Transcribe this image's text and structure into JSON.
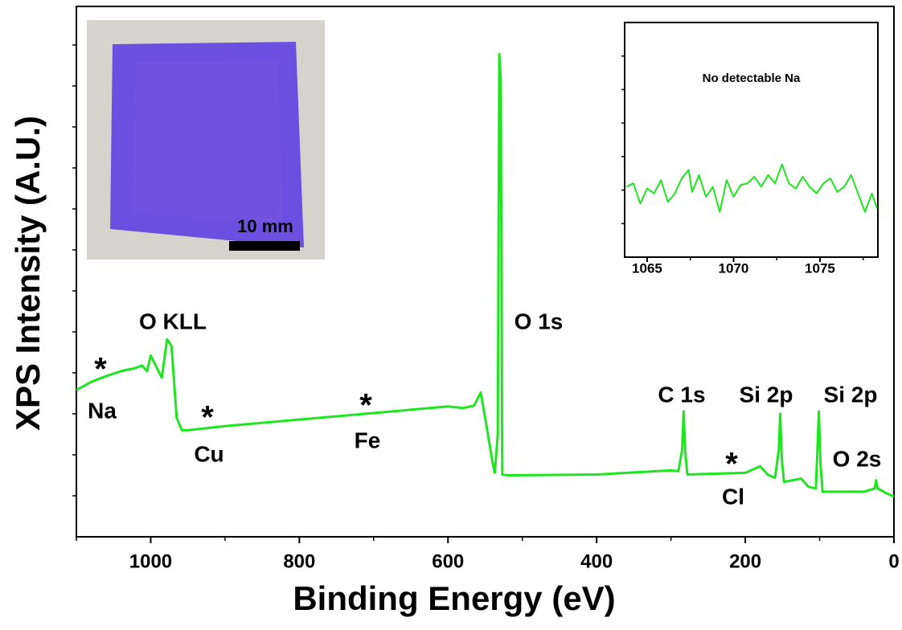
{
  "chart_data": [
    {
      "type": "line",
      "xlabel": "Binding Energy (eV)",
      "ylabel": "XPS Intensity (A.U.)",
      "xlim": [
        1100,
        0
      ],
      "xticks": [
        1000,
        800,
        600,
        400,
        200,
        0
      ],
      "xminorticks": [
        1100,
        900,
        700,
        500,
        300,
        100
      ],
      "ylim": [
        0,
        6.47
      ],
      "yticks": [
        0.5,
        1,
        1.5,
        2,
        2.5,
        3,
        3.5,
        4,
        4.5,
        5,
        5.5,
        6
      ],
      "color": "#1ee61e",
      "x": [
        1100,
        1080,
        1060,
        1040,
        1020,
        1012,
        1005,
        1000,
        995,
        985,
        978,
        972,
        965,
        958,
        950,
        900,
        800,
        700,
        600,
        580,
        565,
        556,
        550,
        540,
        537,
        533,
        531,
        529,
        527,
        520,
        400,
        300,
        290,
        285,
        283,
        281,
        278,
        200,
        180,
        170,
        160,
        155,
        153,
        151,
        148,
        125,
        115,
        105,
        103,
        101,
        99,
        96,
        60,
        40,
        26,
        24,
        22,
        10,
        0
      ],
      "values": [
        1.79,
        1.89,
        1.96,
        2.02,
        2.06,
        2.09,
        2.02,
        2.21,
        2.12,
        1.94,
        2.41,
        2.33,
        1.45,
        1.3,
        1.3,
        1.35,
        1.43,
        1.51,
        1.59,
        1.57,
        1.6,
        1.76,
        1.45,
        0.91,
        0.78,
        1.25,
        5.89,
        5.57,
        0.76,
        0.75,
        0.76,
        0.81,
        0.8,
        1.06,
        1.53,
        1.06,
        0.76,
        0.78,
        0.86,
        0.76,
        0.72,
        1.06,
        1.5,
        0.96,
        0.67,
        0.71,
        0.61,
        0.59,
        1.06,
        1.53,
        0.91,
        0.55,
        0.55,
        0.55,
        0.59,
        0.69,
        0.59,
        0.53,
        0.49
      ],
      "annotations": [
        "O KLL",
        "O 1s",
        "C 1s",
        "Si 2p",
        "Si 2p",
        "O 2s",
        "Na",
        "Cu",
        "Fe",
        "Cl",
        "*",
        "*",
        "*",
        "*"
      ],
      "photo_label": "10 mm"
    },
    {
      "type": "line",
      "title": "No detectable Na",
      "xlim": [
        1063.7,
        1078.35
      ],
      "xticks": [
        1065,
        1070,
        1075
      ],
      "xminorticks": [
        1067.5,
        1072.5,
        1077.5
      ],
      "ylim": [
        -2,
        5
      ],
      "yticks": [
        -1,
        0,
        1,
        2,
        3,
        4
      ],
      "color": "#1ee61e",
      "x": [
        1063.8,
        1064.2,
        1064.6,
        1065.0,
        1065.4,
        1065.8,
        1066.2,
        1066.6,
        1067.0,
        1067.4,
        1067.6,
        1068.0,
        1068.4,
        1068.8,
        1069.2,
        1069.6,
        1070.0,
        1070.4,
        1070.8,
        1071.2,
        1071.6,
        1072.0,
        1072.4,
        1072.8,
        1073.2,
        1073.6,
        1074.0,
        1074.4,
        1074.8,
        1075.2,
        1075.6,
        1076.0,
        1076.4,
        1076.8,
        1077.2,
        1077.6,
        1078.0,
        1078.3
      ],
      "values": [
        0.1,
        0.2,
        -0.4,
        0.05,
        -0.1,
        0.3,
        -0.35,
        -0.1,
        0.35,
        0.6,
        -0.05,
        0.45,
        -0.2,
        0.1,
        -0.65,
        0.3,
        -0.2,
        0.15,
        0.2,
        0.4,
        0.1,
        0.45,
        0.2,
        0.77,
        0.2,
        0.05,
        0.4,
        0.1,
        -0.1,
        0.2,
        0.35,
        -0.05,
        0.1,
        0.45,
        -0.1,
        -0.65,
        -0.1,
        -0.55
      ]
    }
  ]
}
